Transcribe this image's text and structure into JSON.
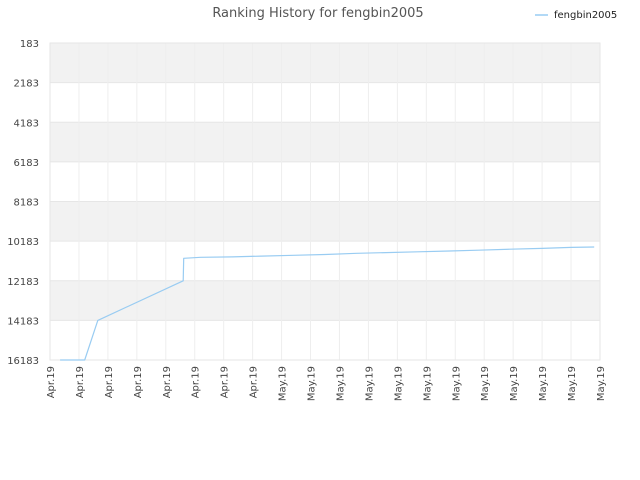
{
  "chart_data": {
    "type": "line",
    "title": "Ranking History for fengbin2005",
    "xlabel": "",
    "ylabel": "",
    "y_inverted": true,
    "ylim": [
      183,
      16183
    ],
    "y_ticks": [
      183,
      2183,
      4183,
      6183,
      8183,
      10183,
      12183,
      14183,
      16183
    ],
    "y_tick_labels": [
      "183",
      "2183",
      "4183",
      "6183",
      "8183",
      "10183",
      "12183",
      "14183",
      "16183"
    ],
    "x_tick_labels": [
      "Apr.19",
      "Apr.19",
      "Apr.19",
      "Apr.19",
      "Apr.19",
      "Apr.19",
      "Apr.19",
      "Apr.19",
      "May.19",
      "May.19",
      "May.19",
      "May.19",
      "May.19",
      "May.19",
      "May.19",
      "May.19",
      "May.19",
      "May.19",
      "May.19",
      "May.19"
    ],
    "grid": true,
    "legend_position": "top-right",
    "series": [
      {
        "name": "fengbin2005",
        "color": "#99ccf2",
        "points": [
          [
            0.35,
            16183
          ],
          [
            1.2,
            16183
          ],
          [
            1.65,
            14183
          ],
          [
            4.6,
            12183
          ],
          [
            4.62,
            11050
          ],
          [
            5.2,
            11000
          ],
          [
            6.3,
            10980
          ],
          [
            7.3,
            10940
          ],
          [
            8.4,
            10900
          ],
          [
            9.5,
            10860
          ],
          [
            10.6,
            10800
          ],
          [
            11.6,
            10760
          ],
          [
            12.7,
            10720
          ],
          [
            13.8,
            10680
          ],
          [
            14.8,
            10640
          ],
          [
            15.9,
            10590
          ],
          [
            17.0,
            10550
          ],
          [
            18.0,
            10500
          ],
          [
            18.8,
            10480
          ]
        ]
      }
    ]
  }
}
